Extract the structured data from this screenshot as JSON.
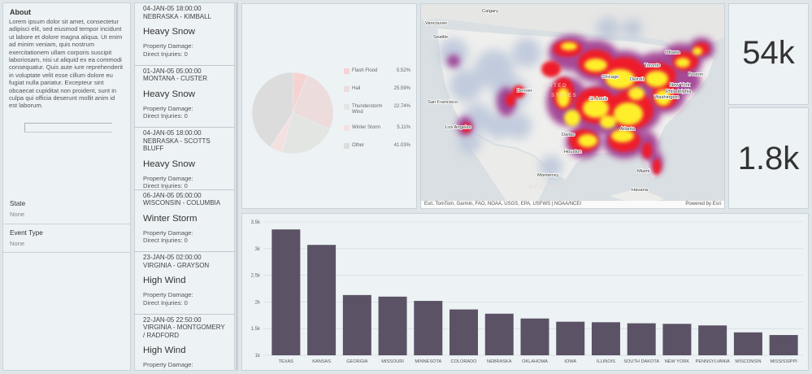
{
  "about": {
    "title": "About",
    "text": "Lorem ipsum dolor sit amet, consectetur adipisci elit, sed eiusmod tempor incidunt ut labore et dolore magna aliqua. Ut enim ad minim veniam, quis nostrum exercitationem ullam corporis suscipit laboriosam, nisi ut aliquid ex ea commodi consequatur. Quis aute iure reprehenderit in voluptate velit esse cillum dolore eu fugiat nulla pariatur. Excepteur sint obcaecat cupiditat non proident, sunt in culpa qui officia deserunt mollit anim id est laborum."
  },
  "filters": {
    "state": {
      "label": "State",
      "value": "None"
    },
    "event_type": {
      "label": "Event Type",
      "value": "None"
    }
  },
  "events": [
    {
      "date": "04-JAN-05 18:00:00",
      "location": "NEBRASKA - KIMBALL",
      "type": "Heavy Snow",
      "damage_label": "Property Damage:",
      "injuries_label": "Direct Injuries: 0"
    },
    {
      "date": "01-JAN-05 05:00:00",
      "location": "MONTANA - CUSTER",
      "type": "Heavy Snow",
      "damage_label": "Property Damage:",
      "injuries_label": "Direct Injuries: 0"
    },
    {
      "date": "04-JAN-05 18:00:00",
      "location": "NEBRASKA - SCOTTS BLUFF",
      "type": "Heavy Snow",
      "damage_label": "Property Damage:",
      "injuries_label": "Direct Injuries: 0"
    },
    {
      "date": "06-JAN-05 05:00:00",
      "location": "WISCONSIN - COLUMBIA",
      "type": "Winter Storm",
      "damage_label": "Property Damage:",
      "injuries_label": "Direct Injuries: 0"
    },
    {
      "date": "23-JAN-05 02:00:00",
      "location": "VIRGINIA - GRAYSON",
      "type": "High Wind",
      "damage_label": "Property Damage:",
      "injuries_label": "Direct Injuries: 0"
    },
    {
      "date": "22-JAN-05 22:50:00",
      "location": "VIRGINIA - MONTGOMERY / RADFORD",
      "type": "High Wind",
      "damage_label": "Property Damage:",
      "injuries_label": ""
    }
  ],
  "pie": {
    "slices": [
      {
        "name": "Flash Flood",
        "value": 5.52,
        "label": "5.52%",
        "color": "#f6d3d3"
      },
      {
        "name": "Hail",
        "value": 25.59,
        "label": "25.59%",
        "color": "#ecdcdc"
      },
      {
        "name": "Thunderstorm Wind",
        "value": 22.74,
        "label": "22.74%",
        "color": "#e2e5e2"
      },
      {
        "name": "Winter Storm",
        "value": 5.11,
        "label": "5.11%",
        "color": "#f5e0e0"
      },
      {
        "name": "Other",
        "value": 41.03,
        "label": "41.03%",
        "color": "#dcdcdc"
      }
    ]
  },
  "map": {
    "labels": [
      {
        "text": "Calgary"
      },
      {
        "text": "Vancouver"
      },
      {
        "text": "Seattle"
      },
      {
        "text": "Ottawa"
      },
      {
        "text": "Toronto"
      },
      {
        "text": "Boston"
      },
      {
        "text": "Detroit"
      },
      {
        "text": "New York"
      },
      {
        "text": "Chicago"
      },
      {
        "text": "Philadelphia"
      },
      {
        "text": "Washington"
      },
      {
        "text": "UNITED"
      },
      {
        "text": "STATES"
      },
      {
        "text": "Denver"
      },
      {
        "text": "St. Louis"
      },
      {
        "text": "San Francisco"
      },
      {
        "text": "Los Angeles"
      },
      {
        "text": "Dallas"
      },
      {
        "text": "Atlanta"
      },
      {
        "text": "Houston"
      },
      {
        "text": "Monterrey"
      },
      {
        "text": "Miami"
      },
      {
        "text": "MÉXICO"
      },
      {
        "text": "Havana"
      }
    ],
    "attribution": "Esri, TomTom, Garmin, FAO, NOAA, USGS, EPA, USFWS | NOAA/NCEI",
    "powered_by": "Powered by Esri"
  },
  "kpis": [
    {
      "value": "54k"
    },
    {
      "value": "1.8k"
    }
  ],
  "chart_data": {
    "type": "bar",
    "categories": [
      "TEXAS",
      "KANSAS",
      "GEORGIA",
      "MISSOURI",
      "MINNESOTA",
      "COLORADO",
      "NEBRASKA",
      "OKLAHOMA",
      "IOWA",
      "ILLINOIS",
      "SOUTH DAKOTA",
      "NEW YORK",
      "PENNSYLVANIA",
      "WISCONSIN",
      "MISSISSIPPI"
    ],
    "values": [
      3360,
      3070,
      2130,
      2100,
      2020,
      1860,
      1780,
      1690,
      1630,
      1620,
      1600,
      1590,
      1560,
      1430,
      1380
    ],
    "ylim": [
      1000,
      3500
    ],
    "yticks": [
      "1k",
      "1.5k",
      "2k",
      "2.5k",
      "3k",
      "3.5k"
    ],
    "grid": true,
    "bar_color": "#5b5365"
  }
}
